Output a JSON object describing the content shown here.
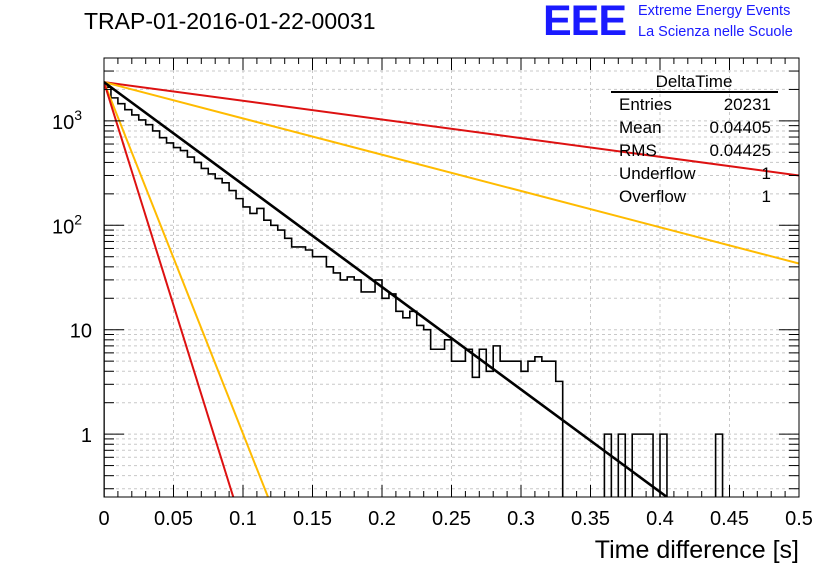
{
  "title": "TRAP-01-2016-01-22-00031",
  "logo": {
    "mark": "EEE",
    "line1": "Extreme Energy Events",
    "line2": "La Scienza nelle Scuole",
    "color": "#1a1aff"
  },
  "stats_box": {
    "name": "DeltaTime",
    "rows": [
      {
        "label": "Entries",
        "value": "20231"
      },
      {
        "label": "Mean",
        "value": "0.04405"
      },
      {
        "label": "RMS",
        "value": "0.04425"
      },
      {
        "label": "Underflow",
        "value": "1"
      },
      {
        "label": "Overflow",
        "value": "1"
      }
    ]
  },
  "chart_data": {
    "type": "line",
    "xlabel": "Time difference [s]",
    "ylabel": "",
    "xlim": [
      0,
      0.5
    ],
    "ylim": [
      0.25,
      4000
    ],
    "log_y": true,
    "grid": true,
    "x_ticks": [
      "0",
      "0.05",
      "0.1",
      "0.15",
      "0.2",
      "0.25",
      "0.3",
      "0.35",
      "0.4",
      "0.45",
      "0.5"
    ],
    "x_tick_values": [
      0,
      0.05,
      0.1,
      0.15,
      0.2,
      0.25,
      0.3,
      0.35,
      0.4,
      0.45,
      0.5
    ],
    "y_tick_values": [
      1,
      10,
      100,
      1000
    ],
    "y_tick_labels": [
      {
        "base": "1",
        "exp": ""
      },
      {
        "base": "10",
        "exp": ""
      },
      {
        "base": "10",
        "exp": "2"
      },
      {
        "base": "10",
        "exp": "3"
      }
    ],
    "histogram": {
      "color": "#000000",
      "bin_width": 0.005,
      "values": [
        2100,
        1660,
        1460,
        1280,
        1140,
        1020,
        920,
        800,
        690,
        615,
        555,
        520,
        450,
        400,
        350,
        310,
        280,
        255,
        215,
        180,
        150,
        130,
        145,
        112,
        100,
        90,
        75,
        62,
        62,
        58,
        50,
        50,
        40,
        35,
        30,
        32,
        30,
        23,
        23,
        30,
        20,
        22,
        15,
        13,
        15,
        11,
        10,
        6.5,
        6.5,
        8,
        5,
        5,
        6.5,
        3.5,
        6.5,
        4,
        7,
        5,
        5,
        5,
        4,
        5,
        5.5,
        5,
        5,
        3.2,
        0.01,
        0.01,
        0.01,
        0.01,
        0.01,
        0.01,
        1,
        0.01,
        1,
        0.01,
        1,
        1,
        1,
        0.01,
        1,
        0.01,
        0.01,
        0.01,
        0.01,
        0.01,
        0.01,
        0.01,
        1,
        0.01,
        0.01,
        0.01,
        0.01,
        0.01,
        0.01,
        0.01,
        0.01,
        0.01,
        0.01,
        0.01
      ]
    },
    "fit": {
      "color": "#000000",
      "x": [
        0,
        0.405
      ],
      "y": [
        2350,
        0.25
      ]
    },
    "series": [
      {
        "color": "#dd1111",
        "x": [
          0,
          0.5
        ],
        "y": [
          2350,
          300
        ]
      },
      {
        "color": "#ffbb00",
        "x": [
          0,
          0.5
        ],
        "y": [
          2350,
          43
        ]
      },
      {
        "color": "#ffbb00",
        "x": [
          0,
          0.118
        ],
        "y": [
          2350,
          0.25
        ]
      },
      {
        "color": "#dd1111",
        "x": [
          0,
          0.093
        ],
        "y": [
          2350,
          0.25
        ]
      }
    ]
  }
}
